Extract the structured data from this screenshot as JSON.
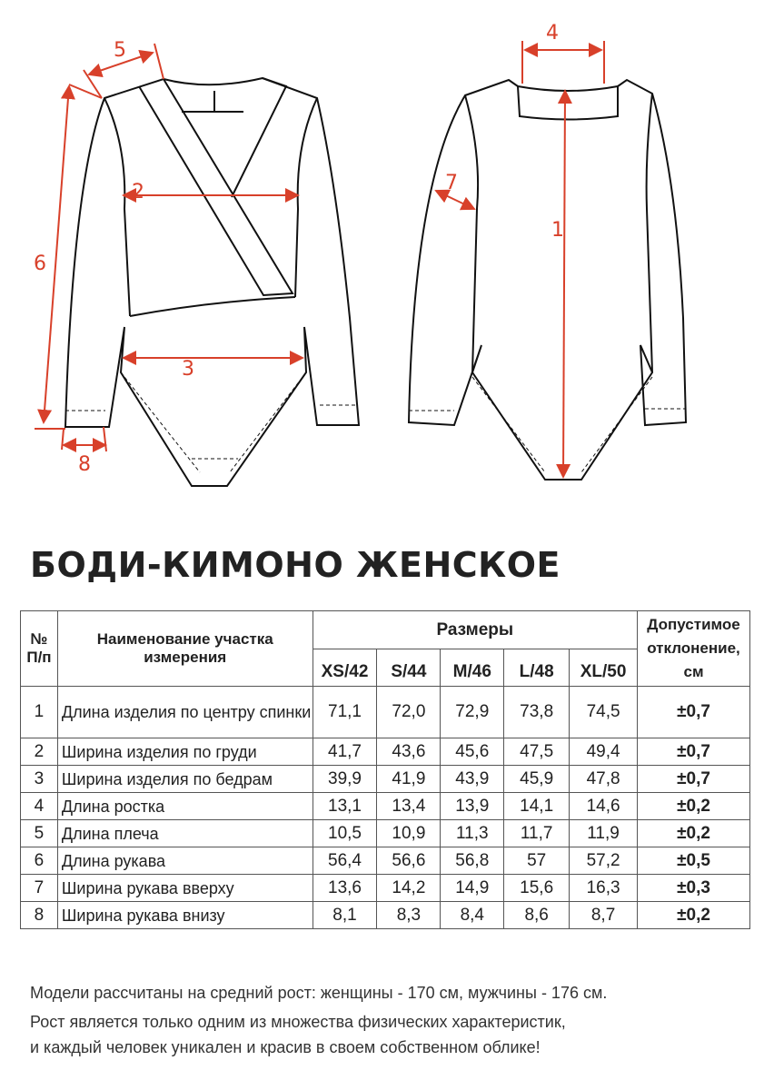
{
  "diagram": {
    "labels": [
      "1",
      "2",
      "3",
      "4",
      "5",
      "6",
      "7",
      "8"
    ],
    "accent_color": "#d8402a"
  },
  "title": "БОДИ-КИМОНО ЖЕНСКОЕ",
  "table": {
    "headers": {
      "number": "№ П/п",
      "name": "Наименование участка измерения",
      "sizes": "Размеры",
      "tolerance": "Допустимое отклонение, см"
    },
    "sizes": [
      "XS/42",
      "S/44",
      "M/46",
      "L/48",
      "XL/50"
    ],
    "rows": [
      {
        "n": "1",
        "name": "Длина изделия по центру спинки",
        "values": [
          "71,1",
          "72,0",
          "72,9",
          "73,8",
          "74,5"
        ],
        "tol": "±0,7"
      },
      {
        "n": "2",
        "name": "Ширина изделия по груди",
        "values": [
          "41,7",
          "43,6",
          "45,6",
          "47,5",
          "49,4"
        ],
        "tol": "±0,7"
      },
      {
        "n": "3",
        "name": "Ширина изделия по бедрам",
        "values": [
          "39,9",
          "41,9",
          "43,9",
          "45,9",
          "47,8"
        ],
        "tol": "±0,7"
      },
      {
        "n": "4",
        "name": "Длина ростка",
        "values": [
          "13,1",
          "13,4",
          "13,9",
          "14,1",
          "14,6"
        ],
        "tol": "±0,2"
      },
      {
        "n": "5",
        "name": "Длина плеча",
        "values": [
          "10,5",
          "10,9",
          "11,3",
          "11,7",
          "11,9"
        ],
        "tol": "±0,2"
      },
      {
        "n": "6",
        "name": "Длина рукава",
        "values": [
          "56,4",
          "56,6",
          "56,8",
          "57",
          "57,2"
        ],
        "tol": "±0,5"
      },
      {
        "n": "7",
        "name": "Ширина рукава вверху",
        "values": [
          "13,6",
          "14,2",
          "14,9",
          "15,6",
          "16,3"
        ],
        "tol": "±0,3"
      },
      {
        "n": "8",
        "name": "Ширина рукава внизу",
        "values": [
          "8,1",
          "8,3",
          "8,4",
          "8,6",
          "8,7"
        ],
        "tol": "±0,2"
      }
    ]
  },
  "footer": {
    "line1": "Модели рассчитаны на средний рост: женщины - 170 см, мужчины - 176 см.",
    "line2": "Рост является только одним из множества физических характеристик,",
    "line3": "и каждый человек уникален и красив в своем собственном облике!"
  }
}
